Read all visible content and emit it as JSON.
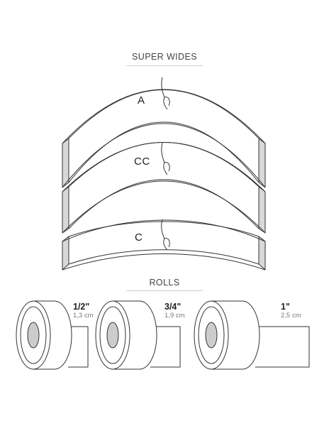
{
  "sections": {
    "super_wides": {
      "title": "SUPER WIDES"
    },
    "rolls": {
      "title": "ROLLS"
    }
  },
  "super_wides": [
    {
      "label": "A"
    },
    {
      "label": "CC"
    },
    {
      "label": "C"
    }
  ],
  "rolls": [
    {
      "size": "1/2\"",
      "metric": "1,3 cm"
    },
    {
      "size": "3/4\"",
      "metric": "1,9 cm"
    },
    {
      "size": "1\"",
      "metric": "2,5 cm"
    }
  ],
  "colors": {
    "stroke": "#333333",
    "end_fill": "#d8d8d8",
    "rule": "#cfcfcf"
  }
}
